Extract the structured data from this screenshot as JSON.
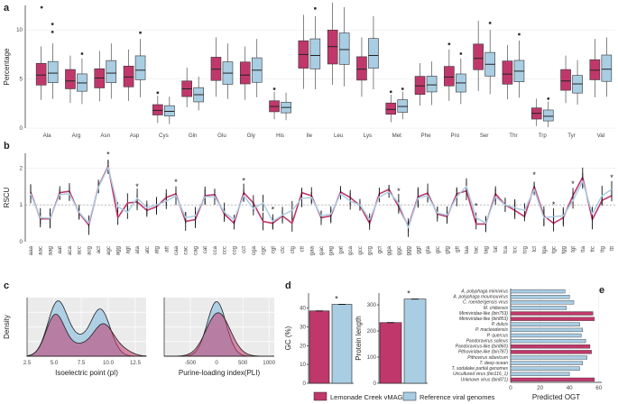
{
  "colors": {
    "vmag": "#c0386b",
    "ref": "#a9cde3",
    "vmag_dark": "#8a1f4b",
    "ref_dark": "#5e93b3",
    "grid": "#e6e6e6"
  },
  "panels": {
    "a": "a",
    "b": "b",
    "c": "c",
    "d": "d",
    "e": "e"
  },
  "legend": {
    "vmag": "Lemonade Creek vMAGs",
    "ref": "Reference viral genomes"
  },
  "chart_data": [
    {
      "id": "a",
      "type": "box",
      "ylabel": "Percentage",
      "ylim": [
        0,
        12.5
      ],
      "yticks": [
        0,
        5,
        10
      ],
      "categories": [
        "Ala",
        "Arg",
        "Asn",
        "Asp",
        "Cys",
        "Gln",
        "Glu",
        "Gly",
        "His",
        "Ile",
        "Leu",
        "Lys",
        "Met",
        "Phe",
        "Pro",
        "Ser",
        "Thr",
        "Trp",
        "Tyr",
        "Val"
      ],
      "series": [
        {
          "name": "Lemonade Creek vMAGs",
          "medians": [
            5.4,
            4.8,
            5.1,
            5.2,
            1.8,
            4.0,
            6.0,
            5.4,
            2.2,
            7.5,
            8.3,
            6.0,
            1.9,
            4.3,
            5.2,
            7.1,
            5.5,
            1.5,
            4.8,
            5.9
          ]
        },
        {
          "name": "Reference viral genomes",
          "medians": [
            5.6,
            4.6,
            5.6,
            5.9,
            1.7,
            3.4,
            5.6,
            5.9,
            2.1,
            7.4,
            8.0,
            7.4,
            2.2,
            4.4,
            4.6,
            6.5,
            5.8,
            1.2,
            4.5,
            6.0
          ]
        }
      ]
    },
    {
      "id": "b",
      "type": "line",
      "ylabel": "RSCU",
      "ylim": [
        0,
        2.4
      ],
      "yticks": [
        0,
        1,
        2
      ],
      "categories": [
        "aaa",
        "aac",
        "aag",
        "aat",
        "aca",
        "acc",
        "acg",
        "act",
        "agc",
        "agg",
        "agt",
        "ata",
        "atc",
        "atg",
        "att",
        "caa",
        "cac",
        "cag",
        "cat",
        "cca",
        "ccc",
        "ccg",
        "cct",
        "cga",
        "cgc",
        "cgt",
        "ctc",
        "ctg",
        "ctt",
        "gaa",
        "gac",
        "gag",
        "gat",
        "gca",
        "gcc",
        "gcg",
        "gct",
        "gga",
        "ggc",
        "ggg",
        "ggt",
        "gta",
        "gtc",
        "gtg",
        "gtt",
        "taa",
        "tac",
        "tag",
        "tat",
        "tca",
        "tcc",
        "tcg",
        "tct",
        "tga",
        "tgc",
        "tgg",
        "tgt",
        "tta",
        "ttc",
        "ttg",
        "ttt"
      ],
      "significant": [
        "agc",
        "ata",
        "caa",
        "cct",
        "cgt",
        "ggc",
        "tac",
        "tct",
        "tgc",
        "tgt",
        "ttt"
      ],
      "series": [
        {
          "name": "Lemonade Creek vMAGs",
          "values": [
            1.35,
            0.62,
            0.62,
            1.33,
            1.37,
            0.78,
            0.45,
            1.5,
            2.05,
            0.65,
            1.05,
            1.08,
            0.85,
            0.95,
            1.2,
            1.3,
            0.55,
            0.6,
            1.25,
            1.28,
            0.75,
            0.5,
            1.33,
            1.05,
            0.55,
            0.5,
            0.7,
            0.5,
            1.33,
            1.25,
            0.65,
            0.7,
            1.35,
            1.2,
            0.98,
            0.5,
            1.3,
            1.42,
            0.95,
            0.42,
            1.22,
            1.32,
            0.75,
            0.68,
            1.3,
            1.38,
            0.48,
            0.48,
            1.3,
            1.0,
            0.85,
            0.68,
            1.5,
            0.7,
            0.5,
            0.65,
            1.25,
            1.75,
            0.6,
            1.12,
            1.25
          ]
        },
        {
          "name": "Reference viral genomes",
          "values": [
            1.3,
            0.65,
            0.64,
            1.28,
            1.3,
            0.8,
            0.5,
            1.48,
            2.02,
            0.95,
            0.8,
            1.18,
            0.92,
            1.0,
            1.1,
            1.25,
            0.65,
            0.7,
            1.22,
            1.22,
            0.8,
            0.6,
            1.25,
            0.9,
            1.05,
            0.55,
            0.72,
            0.85,
            1.18,
            1.2,
            0.7,
            0.75,
            1.3,
            1.1,
            1.0,
            0.6,
            1.22,
            1.35,
            1.05,
            0.38,
            1.18,
            1.25,
            0.78,
            0.72,
            1.22,
            1.5,
            0.65,
            0.5,
            1.22,
            1.0,
            0.92,
            0.85,
            1.42,
            0.65,
            0.68,
            0.7,
            1.12,
            1.65,
            0.75,
            1.25,
            1.42
          ]
        }
      ]
    },
    {
      "id": "c1",
      "type": "density",
      "ylabel": "Density",
      "xlabel": "Isoelectric point (pI)",
      "xlim": [
        2.5,
        13.5
      ],
      "xticks": [
        "2.5",
        "5.0",
        "7.5",
        "10.0",
        "12.5"
      ],
      "xtick_values": [
        2.5,
        5.0,
        7.5,
        10.0,
        12.5
      ]
    },
    {
      "id": "c2",
      "type": "density",
      "xlabel": "Purine-loading index(PLI)",
      "xlim": [
        -1000,
        1100
      ],
      "xticks": [
        "-500",
        "0",
        "500",
        "1000"
      ],
      "xtick_values": [
        -500,
        0,
        500,
        1000
      ]
    },
    {
      "id": "d1",
      "type": "bar",
      "ylabel": "GC (%)",
      "ylim": [
        0,
        48
      ],
      "yticks": [
        "0",
        "10",
        "20",
        "30",
        "40"
      ],
      "ytick_values": [
        0,
        10,
        20,
        30,
        40
      ],
      "values": [
        38.5,
        42.0
      ],
      "sig": "*"
    },
    {
      "id": "d2",
      "type": "bar",
      "ylabel": "Protein length",
      "ylim": [
        0,
        345
      ],
      "yticks": [
        "0",
        "100",
        "200",
        "300"
      ],
      "ytick_values": [
        0,
        100,
        200,
        300
      ],
      "values": [
        232,
        322
      ],
      "sig": "*"
    },
    {
      "id": "e",
      "type": "barh",
      "xlabel": "Predicted OGT",
      "xlim": [
        0,
        62
      ],
      "xticks": [
        "0",
        "20",
        "40",
        "60"
      ],
      "xtick_values": [
        0,
        20,
        40,
        60
      ],
      "categories": [
        "A. polyphaga mimivirus",
        "A. polyphaga moumouvirus",
        "C. roenbergensis virus",
        "M. chiliensis",
        "Mimiviridae-like (bin753)",
        "Mimiviridae-like (bin853)",
        "P. dulcis",
        "P. macleodensis",
        "P. quercus",
        "Pandoravirus salinus",
        "Pandoravirus-like (bin860)",
        "Pithoviridae-like (bin787)",
        "Pithovirus sibericum",
        "T. deep ocean",
        "T. sodalake partial genomes",
        "Uncultured virus (bin116_1)",
        "Unknown virus (bin871)"
      ],
      "types": [
        "ref",
        "ref",
        "ref",
        "ref",
        "vmag",
        "vmag",
        "ref",
        "ref",
        "ref",
        "ref",
        "vmag",
        "vmag",
        "ref",
        "ref",
        "ref",
        "ref",
        "vmag"
      ],
      "values": [
        37,
        40,
        43,
        38,
        56,
        57,
        47,
        49,
        48,
        51,
        54,
        55,
        52,
        49,
        47,
        40,
        57
      ]
    }
  ]
}
